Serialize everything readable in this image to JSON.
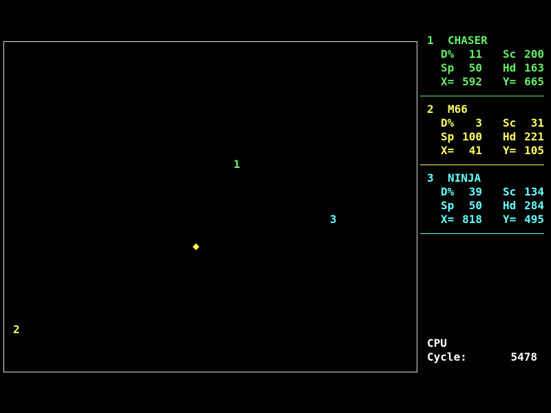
{
  "robots": [
    {
      "num": "1",
      "name": "CHASER",
      "color": "#66ee66",
      "damage_label": "D%",
      "damage": "11",
      "score_label": "Sc",
      "score": "200",
      "speed_label": "Sp",
      "speed": "50",
      "heading_label": "Hd",
      "heading": "163",
      "x_label": "X=",
      "x": "592",
      "y_label": "Y=",
      "y": "665"
    },
    {
      "num": "2",
      "name": "M66",
      "color": "#ffff66",
      "damage_label": "D%",
      "damage": "3",
      "score_label": "Sc",
      "score": "31",
      "speed_label": "Sp",
      "speed": "100",
      "heading_label": "Hd",
      "heading": "221",
      "x_label": "X=",
      "x": "41",
      "y_label": "Y=",
      "y": "105"
    },
    {
      "num": "3",
      "name": "NINJA",
      "color": "#66ffff",
      "damage_label": "D%",
      "damage": "39",
      "score_label": "Sc",
      "score": "134",
      "speed_label": "Sp",
      "speed": "50",
      "heading_label": "Hd",
      "heading": "284",
      "x_label": "X=",
      "x": "818",
      "y_label": "Y=",
      "y": "495"
    }
  ],
  "cpu": {
    "title": "CPU",
    "cycle_label": "Cycle:",
    "cycle": "5478"
  },
  "missile_color": "#ffff55"
}
